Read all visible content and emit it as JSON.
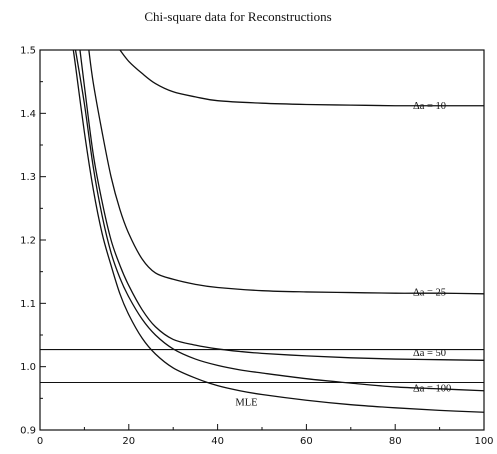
{
  "chart_data": {
    "type": "line",
    "title": "Chi-square data for Reconstructions",
    "xlabel": "",
    "ylabel": "",
    "xlim": [
      0,
      100
    ],
    "ylim": [
      0.9,
      1.5
    ],
    "xticks": [
      0,
      20,
      40,
      60,
      80,
      100
    ],
    "xtick_labels": [
      "0",
      "20",
      "40",
      "60",
      "80",
      "100"
    ],
    "yticks": [
      0.9,
      1.0,
      1.1,
      1.2,
      1.3,
      1.4,
      1.5
    ],
    "ytick_labels": [
      "0.9",
      "1.0",
      "1.1",
      "1.2",
      "1.3",
      "1.4",
      "1.5"
    ],
    "grid": false,
    "series": [
      {
        "name": "Δa = 10",
        "x": [
          18,
          20,
          23,
          26,
          30,
          35,
          40,
          50,
          60,
          70,
          80,
          90,
          100
        ],
        "y": [
          1.5,
          1.482,
          1.463,
          1.447,
          1.434,
          1.426,
          1.42,
          1.416,
          1.414,
          1.413,
          1.412,
          1.412,
          1.412
        ]
      },
      {
        "name": "Δa = 25",
        "x": [
          11,
          12,
          14,
          16,
          18,
          20,
          23,
          26,
          30,
          35,
          40,
          50,
          60,
          70,
          80,
          90,
          100
        ],
        "y": [
          1.5,
          1.448,
          1.37,
          1.3,
          1.248,
          1.21,
          1.17,
          1.148,
          1.138,
          1.13,
          1.125,
          1.12,
          1.118,
          1.117,
          1.116,
          1.116,
          1.115
        ]
      },
      {
        "name": "Δa = 50",
        "x": [
          9,
          10,
          12,
          14,
          16,
          18,
          20,
          23,
          26,
          30,
          35,
          40,
          45,
          50,
          60,
          70,
          80,
          90,
          100
        ],
        "y": [
          1.5,
          1.443,
          1.335,
          1.26,
          1.2,
          1.16,
          1.128,
          1.09,
          1.063,
          1.043,
          1.034,
          1.028,
          1.024,
          1.021,
          1.017,
          1.014,
          1.012,
          1.011,
          1.01
        ]
      },
      {
        "name": "Δa = 100",
        "x": [
          8,
          10,
          12,
          14,
          16,
          18,
          20,
          23,
          26,
          30,
          35,
          40,
          45,
          50,
          60,
          70,
          80,
          90,
          100
        ],
        "y": [
          1.5,
          1.415,
          1.315,
          1.238,
          1.18,
          1.14,
          1.11,
          1.075,
          1.05,
          1.028,
          1.012,
          1.002,
          0.995,
          0.99,
          0.981,
          0.974,
          0.968,
          0.965,
          0.962
        ]
      },
      {
        "name": "MLE",
        "x": [
          7.5,
          8,
          10,
          12,
          14,
          16,
          18,
          20,
          23,
          26,
          30,
          35,
          40,
          45,
          50,
          60,
          70,
          80,
          90,
          100
        ],
        "y": [
          1.5,
          1.475,
          1.37,
          1.28,
          1.21,
          1.16,
          1.115,
          1.082,
          1.045,
          1.02,
          0.998,
          0.982,
          0.97,
          0.962,
          0.956,
          0.947,
          0.94,
          0.935,
          0.931,
          0.928
        ]
      }
    ],
    "reference_lines": [
      {
        "y": 1.027,
        "x": [
          0,
          100
        ]
      },
      {
        "y": 0.975,
        "x": [
          0,
          100
        ]
      }
    ],
    "annotations": [
      {
        "text": "Δa = 10",
        "x": 84,
        "y": 1.412
      },
      {
        "text": "Δa = 25",
        "x": 84,
        "y": 1.118
      },
      {
        "text": "Δa = 50",
        "x": 84,
        "y": 1.022
      },
      {
        "text": "Δa = 100",
        "x": 84,
        "y": 0.966
      },
      {
        "text": "MLE",
        "x": 44,
        "y": 0.944
      }
    ]
  }
}
